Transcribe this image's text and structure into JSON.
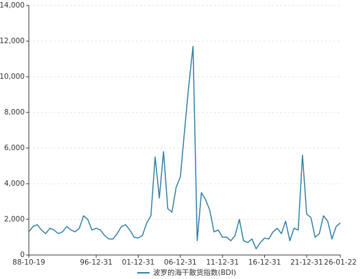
{
  "chart_data": {
    "type": "line",
    "categories": [
      "88-10-19",
      null,
      null,
      null,
      null,
      null,
      null,
      null,
      null,
      null,
      null,
      null,
      null,
      null,
      null,
      null,
      "96-12-31",
      null,
      null,
      null,
      null,
      null,
      null,
      null,
      null,
      null,
      "01-12-31",
      null,
      null,
      null,
      null,
      null,
      null,
      null,
      null,
      null,
      "06-12-31",
      null,
      null,
      null,
      null,
      null,
      null,
      null,
      null,
      null,
      "11-12-31",
      null,
      null,
      null,
      null,
      null,
      null,
      null,
      null,
      null,
      "16-12-31",
      null,
      null,
      null,
      null,
      null,
      null,
      null,
      null,
      null,
      "21-12-31",
      null,
      null,
      null,
      null,
      null,
      null,
      null,
      "26-01-22"
    ],
    "series": [
      {
        "name": "波罗的海干散货指数(BDI)",
        "color": "#2f7ea6",
        "values": [
          1300,
          1600,
          1700,
          1400,
          1200,
          1500,
          1400,
          1200,
          1300,
          1600,
          1400,
          1300,
          1500,
          2200,
          2000,
          1400,
          1500,
          1400,
          1100,
          900,
          900,
          1200,
          1600,
          1700,
          1400,
          1000,
          950,
          1100,
          1800,
          2200,
          5500,
          3200,
          5800,
          2600,
          2400,
          3800,
          4400,
          7000,
          9500,
          11700,
          800,
          3500,
          3100,
          2500,
          1300,
          1400,
          1000,
          1000,
          800,
          1100,
          2000,
          800,
          700,
          900,
          350,
          700,
          950,
          900,
          1300,
          1500,
          1200,
          1900,
          800,
          1500,
          1400,
          5600,
          2300,
          2100,
          1000,
          1200,
          2200,
          1900,
          900,
          1600,
          1800
        ]
      }
    ],
    "ylim": [
      0,
      14000
    ],
    "yticks": [
      0,
      {
        "value": 2000,
        "label": "2,000"
      },
      {
        "value": 4000,
        "label": "4,000"
      },
      {
        "value": 6000,
        "label": "6,000"
      },
      {
        "value": 8000,
        "label": "8,000"
      },
      {
        "value": 10000,
        "label": "10,000"
      },
      {
        "value": 12000,
        "label": "12,000"
      },
      {
        "value": 14000,
        "label": "14,000"
      }
    ],
    "grid": true,
    "legend": "bottom"
  }
}
